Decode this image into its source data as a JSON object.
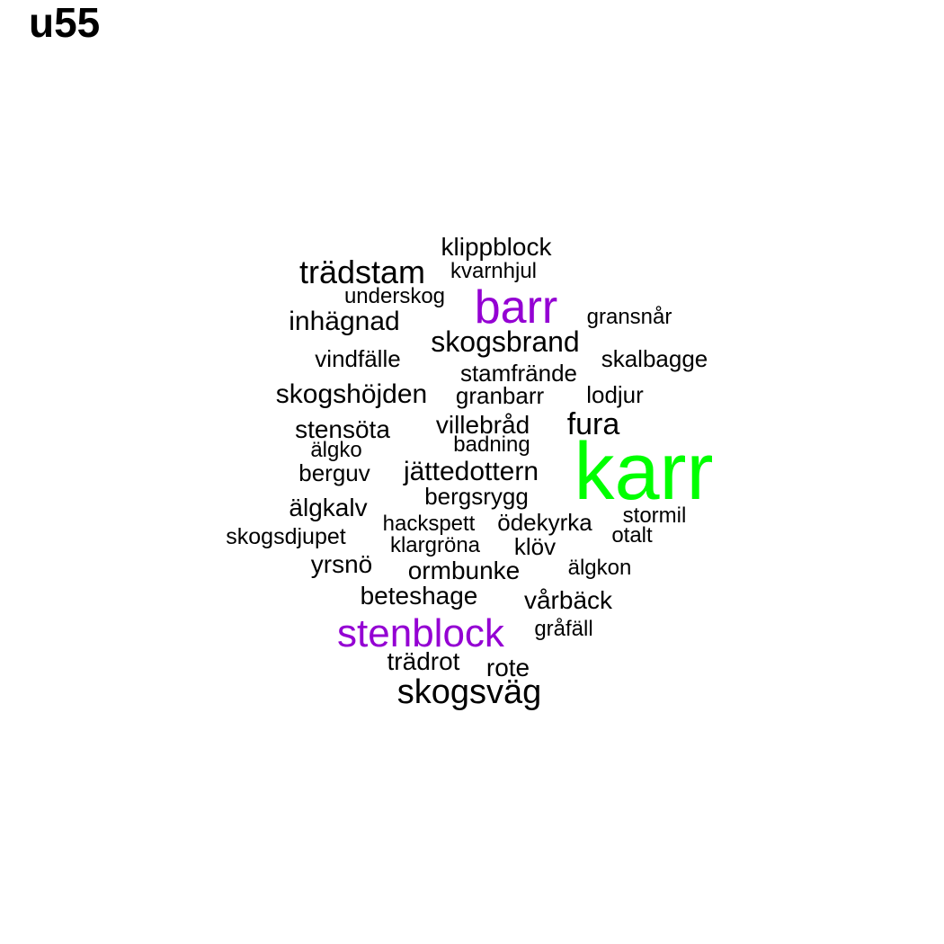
{
  "title": "u55",
  "chart_data": {
    "type": "wordcloud",
    "colors": {
      "default": "#000000",
      "highlight": "#9400D3",
      "top": "#00FF00"
    },
    "words": [
      {
        "text": "karr",
        "group": "top"
      },
      {
        "text": "barr",
        "group": "highlight"
      },
      {
        "text": "stenblock",
        "group": "highlight"
      },
      {
        "text": "skogsväg",
        "group": "default"
      },
      {
        "text": "trädstam",
        "group": "default"
      },
      {
        "text": "skogsbrand",
        "group": "default"
      },
      {
        "text": "skogshöjden",
        "group": "default"
      },
      {
        "text": "jättedottern",
        "group": "default"
      },
      {
        "text": "inhägnad",
        "group": "default"
      },
      {
        "text": "fura",
        "group": "default"
      },
      {
        "text": "klippblock",
        "group": "default"
      },
      {
        "text": "villebråd",
        "group": "default"
      },
      {
        "text": "stensöta",
        "group": "default"
      },
      {
        "text": "älgkalv",
        "group": "default"
      },
      {
        "text": "ormbunke",
        "group": "default"
      },
      {
        "text": "beteshage",
        "group": "default"
      },
      {
        "text": "trädrot",
        "group": "default"
      },
      {
        "text": "rote",
        "group": "default"
      },
      {
        "text": "vårbäck",
        "group": "default"
      },
      {
        "text": "yrsnö",
        "group": "default"
      },
      {
        "text": "bergsrygg",
        "group": "default"
      },
      {
        "text": "lodjur",
        "group": "default"
      },
      {
        "text": "granbarr",
        "group": "default"
      },
      {
        "text": "vindfälle",
        "group": "default"
      },
      {
        "text": "skalbagge",
        "group": "default"
      },
      {
        "text": "stamfrände",
        "group": "default"
      },
      {
        "text": "berguv",
        "group": "default"
      },
      {
        "text": "skogsdjupet",
        "group": "default"
      },
      {
        "text": "hackspett",
        "group": "default"
      },
      {
        "text": "ödekyrka",
        "group": "default"
      },
      {
        "text": "klöv",
        "group": "default"
      },
      {
        "text": "underskog",
        "group": "default"
      },
      {
        "text": "kvarnhjul",
        "group": "default"
      },
      {
        "text": "gransnår",
        "group": "default"
      },
      {
        "text": "badning",
        "group": "default"
      },
      {
        "text": "älgko",
        "group": "default"
      },
      {
        "text": "stormil",
        "group": "default"
      },
      {
        "text": "otalt",
        "group": "default"
      },
      {
        "text": "klargröna",
        "group": "default"
      },
      {
        "text": "älgkon",
        "group": "default"
      },
      {
        "text": "gråfäll",
        "group": "default"
      }
    ]
  }
}
